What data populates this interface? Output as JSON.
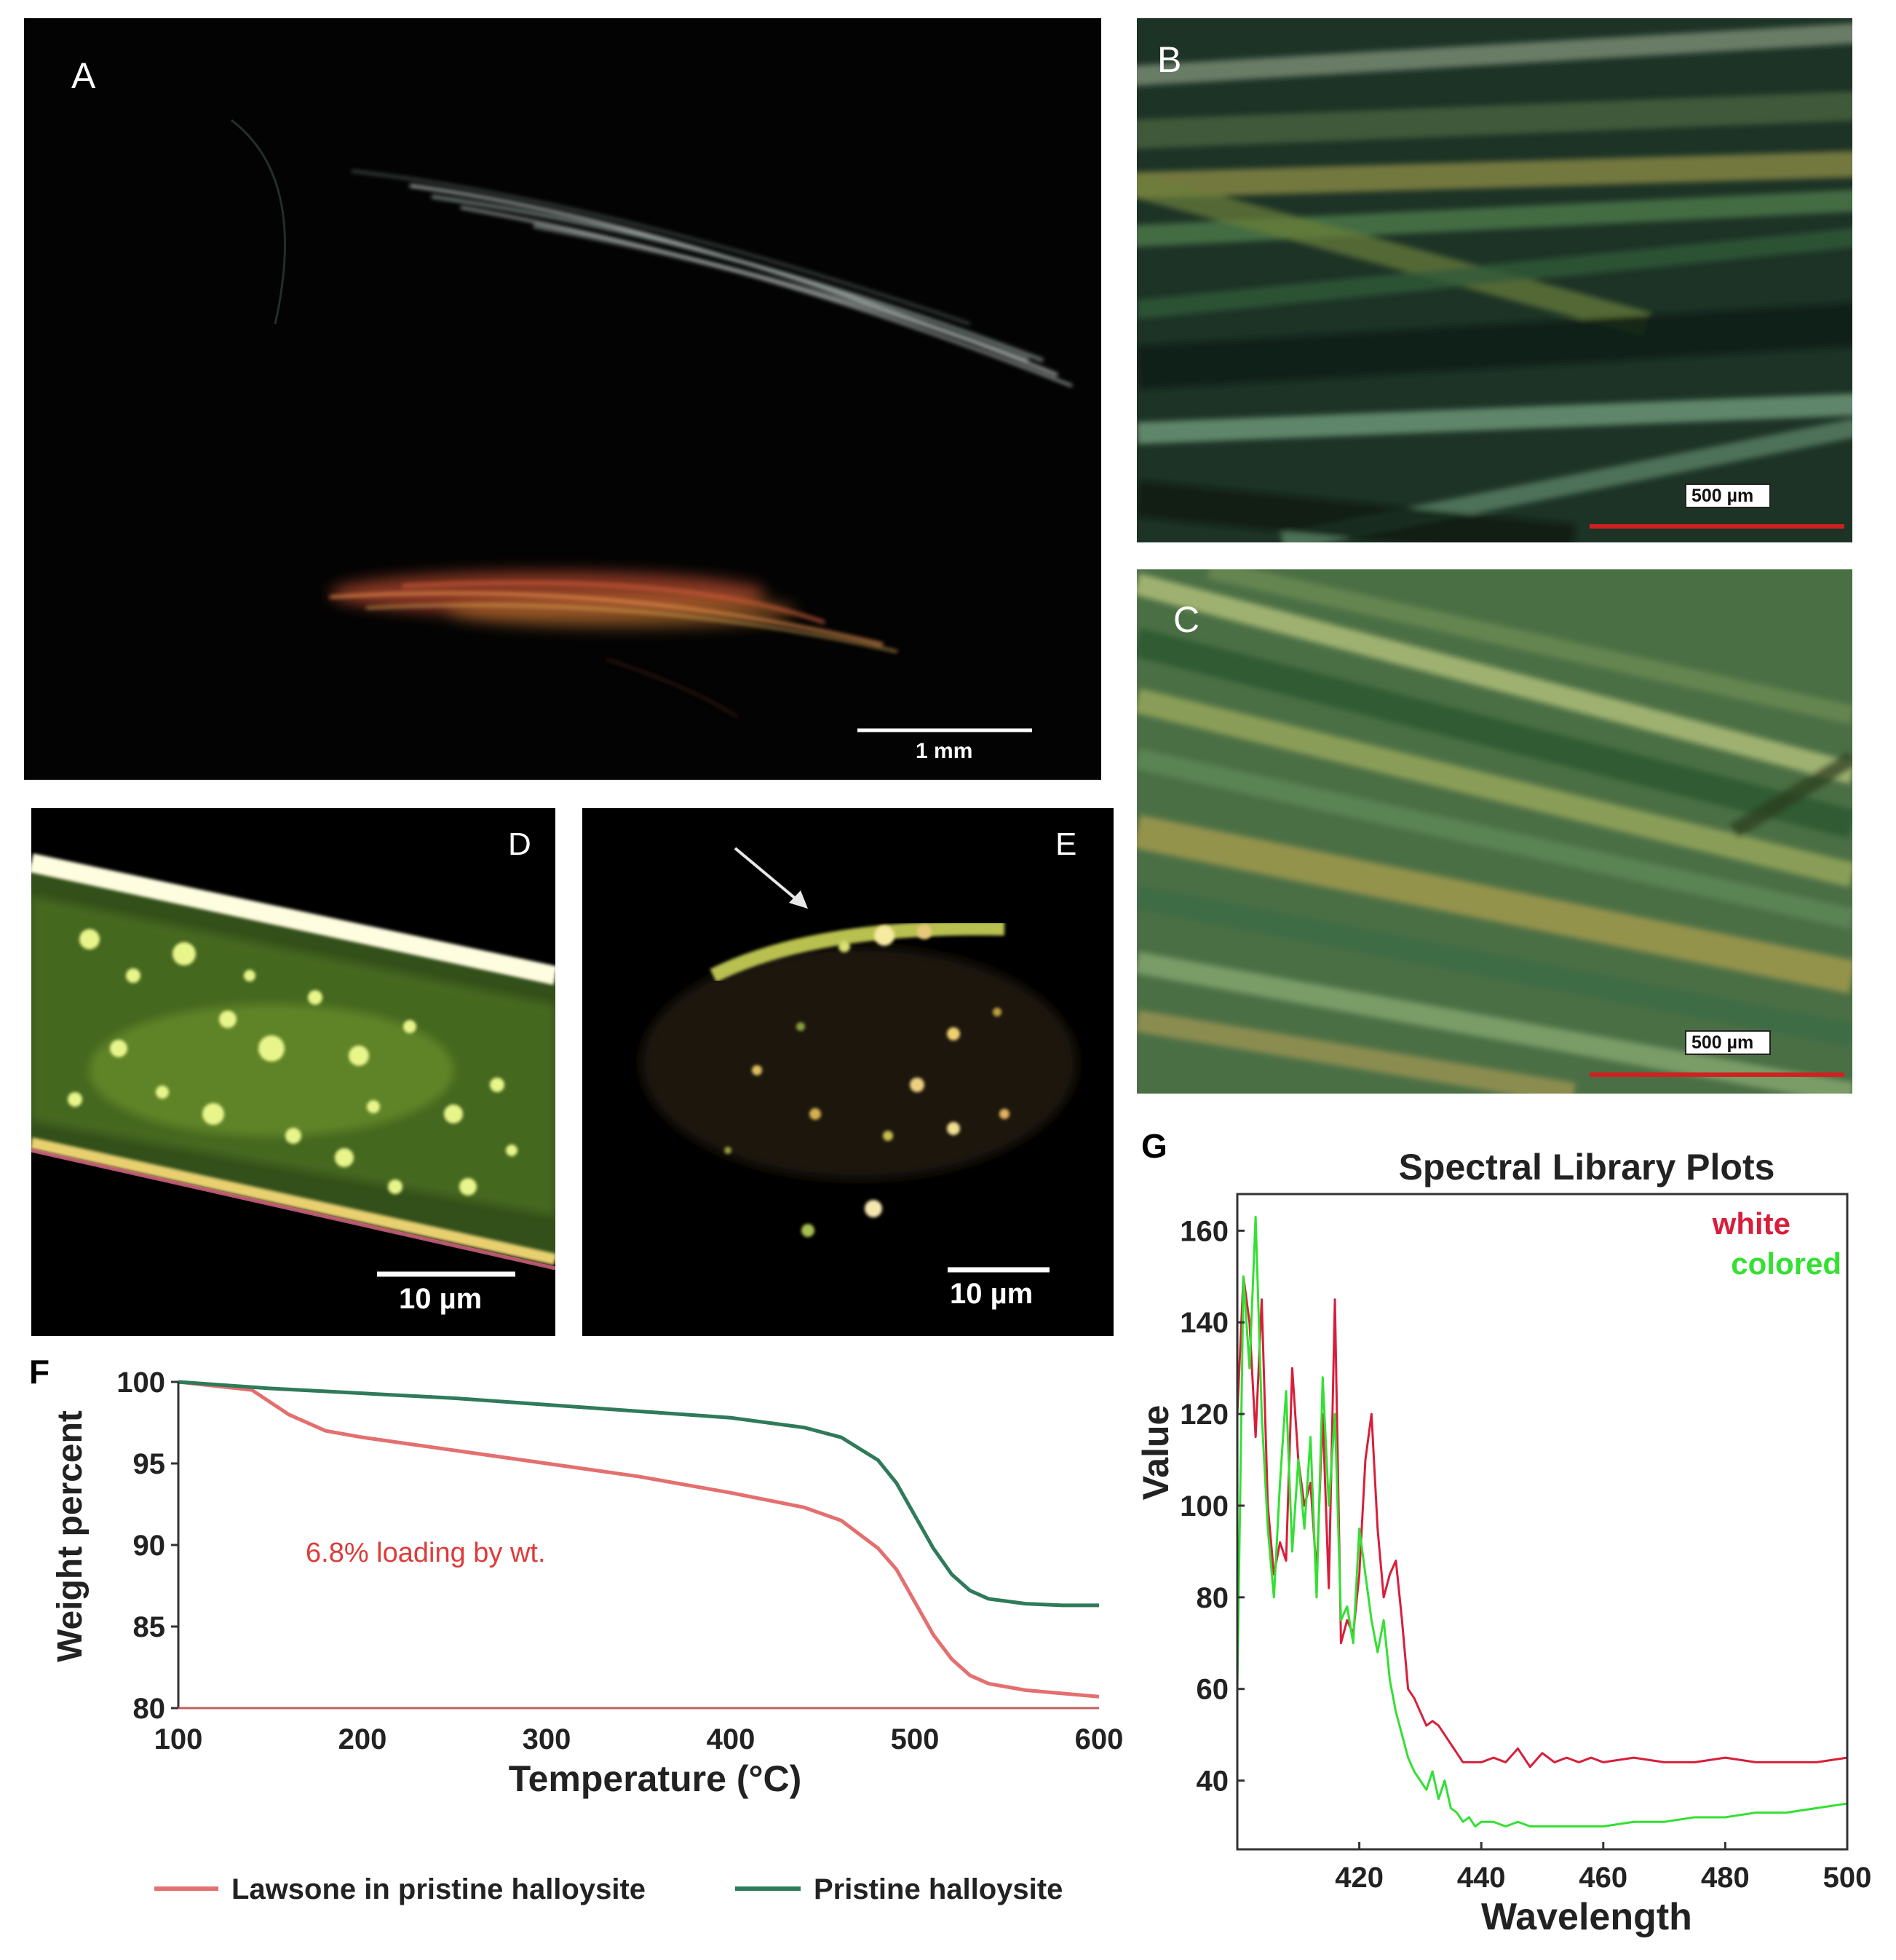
{
  "panels": {
    "A": {
      "label": "A",
      "scale": "1 mm"
    },
    "B": {
      "label": "B",
      "scale": "500 µm"
    },
    "C": {
      "label": "C",
      "scale": "500 µm"
    },
    "D": {
      "label": "D",
      "scale": "10 µm"
    },
    "E": {
      "label": "E",
      "scale": "10 µm"
    }
  },
  "chart_data": [
    {
      "panel": "F",
      "type": "line",
      "title": "",
      "xlabel": "Temperature (°C)",
      "ylabel": "Weight percent",
      "xlim": [
        100,
        600
      ],
      "ylim": [
        80,
        100
      ],
      "xticks": [
        100,
        200,
        300,
        400,
        500,
        600
      ],
      "yticks": [
        80,
        85,
        90,
        95,
        100
      ],
      "annotation": "6.8% loading by wt.",
      "legend_position": "bottom",
      "series": [
        {
          "name": "Lawsone in pristine halloysite",
          "color": "#e46f6f",
          "x": [
            100,
            140,
            160,
            180,
            200,
            250,
            300,
            350,
            400,
            440,
            460,
            480,
            490,
            500,
            510,
            520,
            530,
            540,
            560,
            580,
            600
          ],
          "y": [
            100,
            99.5,
            98.0,
            97.0,
            96.6,
            95.8,
            95.0,
            94.2,
            93.2,
            92.3,
            91.5,
            89.8,
            88.5,
            86.5,
            84.5,
            83.0,
            82.0,
            81.5,
            81.1,
            80.9,
            80.7
          ]
        },
        {
          "name": "Pristine halloysite",
          "color": "#2f7a5a",
          "x": [
            100,
            150,
            200,
            250,
            300,
            350,
            400,
            440,
            460,
            480,
            490,
            500,
            510,
            520,
            530,
            540,
            560,
            580,
            600
          ],
          "y": [
            100,
            99.6,
            99.3,
            99.0,
            98.6,
            98.2,
            97.8,
            97.2,
            96.6,
            95.2,
            93.8,
            91.8,
            89.8,
            88.2,
            87.2,
            86.7,
            86.4,
            86.3,
            86.3
          ]
        }
      ]
    },
    {
      "panel": "G",
      "type": "line",
      "title": "Spectral Library Plots",
      "xlabel": "Wavelength",
      "ylabel": "Value",
      "xlim": [
        400,
        500
      ],
      "ylim": [
        25,
        168
      ],
      "xticks": [
        420,
        440,
        460,
        480,
        500
      ],
      "yticks": [
        40,
        60,
        80,
        100,
        120,
        140,
        160
      ],
      "legend_position": "top-right",
      "series": [
        {
          "name": "white",
          "color": "#d81e3a",
          "x": [
            400,
            401,
            402,
            403,
            404,
            405,
            406,
            407,
            408,
            409,
            410,
            411,
            412,
            413,
            414,
            415,
            416,
            417,
            418,
            419,
            420,
            421,
            422,
            423,
            424,
            425,
            426,
            427,
            428,
            429,
            430,
            431,
            432,
            433,
            434,
            435,
            436,
            437,
            438,
            439,
            440,
            442,
            444,
            446,
            448,
            450,
            452,
            454,
            456,
            458,
            460,
            465,
            470,
            475,
            480,
            485,
            490,
            495,
            500
          ],
          "y": [
            120,
            150,
            140,
            115,
            145,
            100,
            85,
            92,
            88,
            130,
            110,
            100,
            105,
            85,
            120,
            82,
            145,
            70,
            75,
            72,
            85,
            110,
            120,
            95,
            80,
            85,
            88,
            75,
            60,
            58,
            55,
            52,
            53,
            52,
            50,
            48,
            46,
            44,
            44,
            44,
            44,
            45,
            44,
            47,
            43,
            46,
            44,
            45,
            44,
            45,
            44,
            45,
            44,
            44,
            45,
            44,
            44,
            44,
            45
          ]
        },
        {
          "name": "colored",
          "color": "#33e033",
          "x": [
            400,
            401,
            402,
            403,
            404,
            405,
            406,
            407,
            408,
            409,
            410,
            411,
            412,
            413,
            414,
            415,
            416,
            417,
            418,
            419,
            420,
            421,
            422,
            423,
            424,
            425,
            426,
            427,
            428,
            429,
            430,
            431,
            432,
            433,
            434,
            435,
            436,
            437,
            438,
            439,
            440,
            442,
            444,
            446,
            448,
            450,
            455,
            460,
            465,
            470,
            475,
            480,
            485,
            490,
            495,
            500
          ],
          "y": [
            60,
            150,
            130,
            163,
            120,
            95,
            80,
            105,
            125,
            90,
            110,
            95,
            115,
            80,
            128,
            100,
            120,
            75,
            78,
            70,
            95,
            85,
            75,
            68,
            75,
            62,
            55,
            50,
            45,
            42,
            40,
            38,
            42,
            36,
            40,
            34,
            33,
            31,
            32,
            30,
            31,
            31,
            30,
            31,
            30,
            30,
            30,
            30,
            31,
            31,
            32,
            32,
            33,
            33,
            34,
            35
          ]
        }
      ]
    }
  ]
}
